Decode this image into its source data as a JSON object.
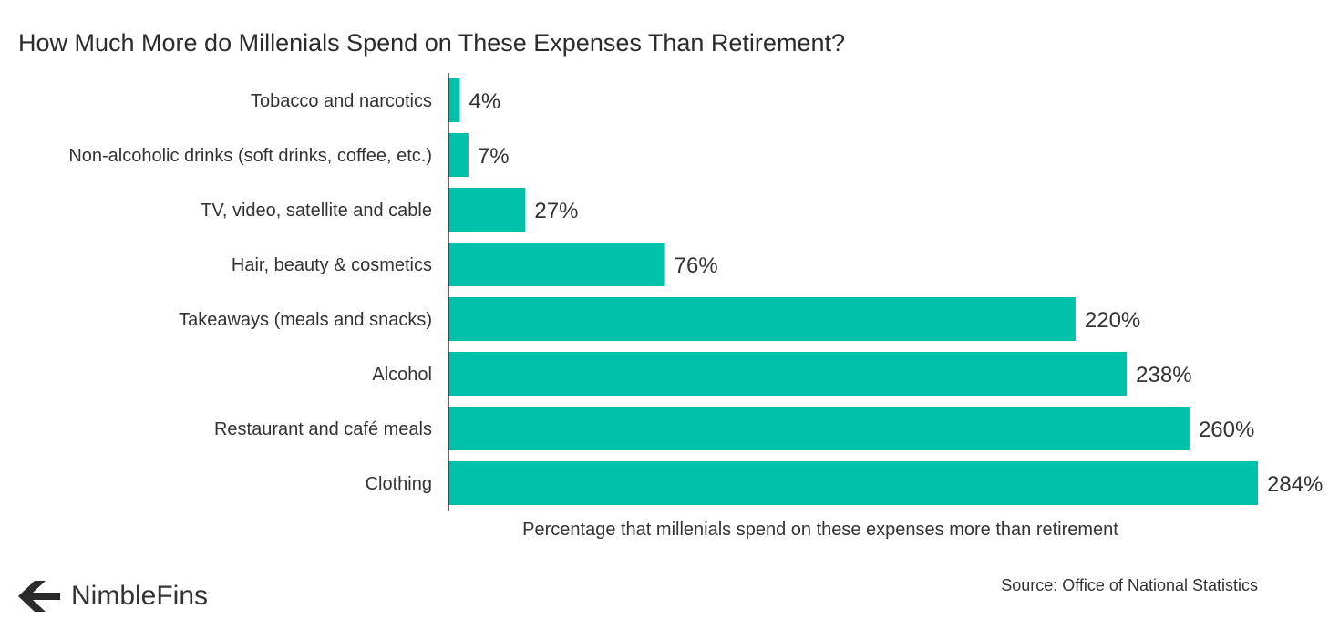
{
  "title": "How Much More do Millenials Spend on These Expenses Than Retirement?",
  "source": "Source: Office of National Statistics",
  "brand": "NimbleFins",
  "colors": {
    "bar": "#00c2aa",
    "axis": "#333333",
    "text": "#333333"
  },
  "chart_data": {
    "type": "bar",
    "orientation": "horizontal",
    "categories": [
      "Tobacco and narcotics",
      "Non-alcoholic drinks (soft drinks, coffee, etc.)",
      "TV, video, satellite and cable",
      "Hair, beauty & cosmetics",
      "Takeaways (meals and snacks)",
      "Alcohol",
      "Restaurant and café meals",
      "Clothing"
    ],
    "values": [
      4,
      7,
      27,
      76,
      220,
      238,
      260,
      284
    ],
    "value_labels": [
      "4%",
      "7%",
      "27%",
      "76%",
      "220%",
      "238%",
      "260%",
      "284%"
    ],
    "xlabel": "Percentage that millenials spend on these expenses more than retirement",
    "ylabel": "",
    "xlim": [
      0,
      284
    ],
    "grid": false,
    "legend": "none"
  }
}
